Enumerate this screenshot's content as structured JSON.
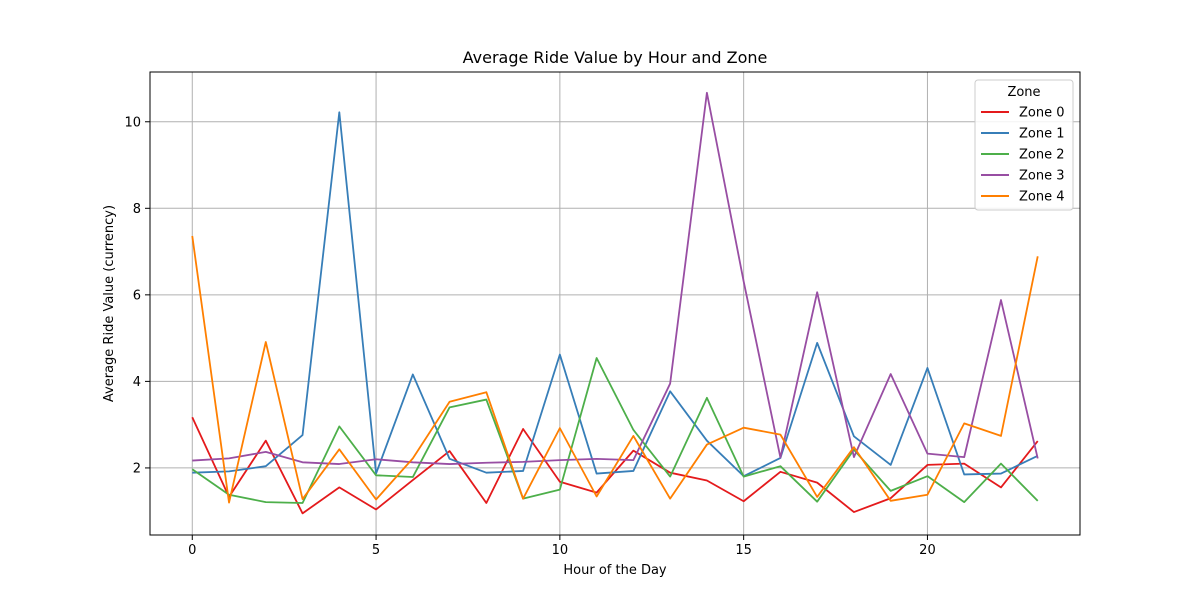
{
  "chart_data": {
    "type": "line",
    "title": "Average Ride Value by Hour and Zone",
    "xlabel": "Hour of the Day",
    "ylabel": "Average Ride Value (currency)",
    "xlim": [
      -1.15,
      24.15
    ],
    "ylim": [
      0.45,
      11.15
    ],
    "xticks": [
      0,
      5,
      10,
      15,
      20
    ],
    "yticks": [
      2,
      4,
      6,
      8,
      10
    ],
    "grid": true,
    "legend": {
      "title": "Zone",
      "placement": "top-right"
    },
    "x": [
      0,
      1,
      2,
      3,
      4,
      5,
      6,
      7,
      8,
      9,
      10,
      11,
      12,
      13,
      14,
      15,
      16,
      17,
      18,
      19,
      20,
      21,
      22,
      23
    ],
    "series": [
      {
        "name": "Zone 0",
        "color": "#e41a1c",
        "values": [
          3.17,
          1.33,
          2.63,
          0.95,
          1.55,
          1.04,
          1.72,
          2.39,
          1.19,
          2.9,
          1.68,
          1.43,
          2.4,
          1.89,
          1.71,
          1.23,
          1.91,
          1.66,
          0.98,
          1.3,
          2.07,
          2.1,
          1.55,
          2.62
        ]
      },
      {
        "name": "Zone 1",
        "color": "#377eb8",
        "values": [
          1.89,
          1.92,
          2.04,
          2.76,
          10.22,
          1.87,
          4.16,
          2.21,
          1.89,
          1.93,
          4.62,
          1.87,
          1.93,
          3.77,
          2.63,
          1.81,
          2.23,
          4.89,
          2.73,
          2.07,
          4.31,
          1.85,
          1.87,
          2.28
        ]
      },
      {
        "name": "Zone 2",
        "color": "#4daf4a",
        "values": [
          1.97,
          1.38,
          1.21,
          1.19,
          2.96,
          1.83,
          1.79,
          3.4,
          3.58,
          1.29,
          1.5,
          4.54,
          2.88,
          1.8,
          3.62,
          1.8,
          2.04,
          1.22,
          2.42,
          1.47,
          1.81,
          1.21,
          2.1,
          1.24
        ]
      },
      {
        "name": "Zone 3",
        "color": "#984ea3",
        "values": [
          2.17,
          2.22,
          2.37,
          2.13,
          2.09,
          2.2,
          2.13,
          2.09,
          2.12,
          2.14,
          2.18,
          2.21,
          2.18,
          3.95,
          10.67,
          6.31,
          2.24,
          6.06,
          2.25,
          4.17,
          2.33,
          2.25,
          5.88,
          2.22
        ]
      },
      {
        "name": "Zone 4",
        "color": "#ff7f00",
        "values": [
          7.36,
          1.2,
          4.91,
          1.28,
          2.43,
          1.27,
          2.22,
          3.53,
          3.75,
          1.29,
          2.92,
          1.34,
          2.74,
          1.29,
          2.54,
          2.93,
          2.77,
          1.33,
          2.48,
          1.24,
          1.38,
          3.03,
          2.74,
          6.89
        ]
      }
    ]
  }
}
